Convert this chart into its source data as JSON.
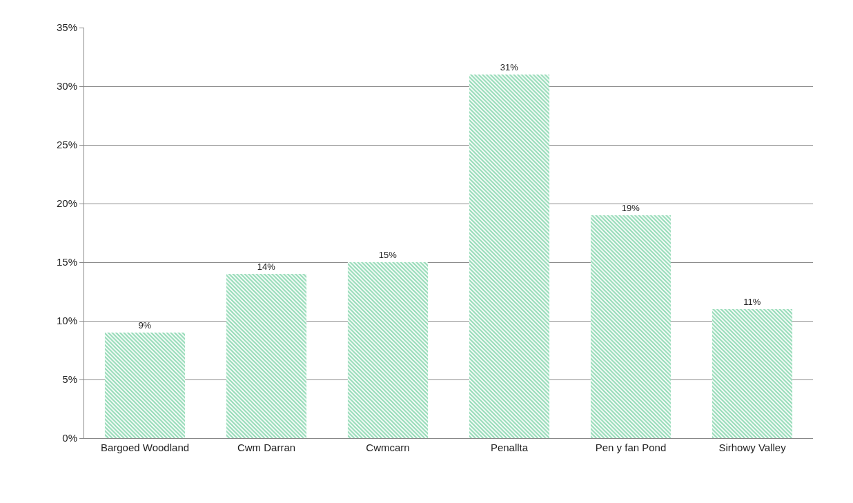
{
  "chart_data": {
    "type": "bar",
    "categories": [
      "Bargoed Woodland",
      "Cwm Darran",
      "Cwmcarn",
      "Penallta",
      "Pen y fan Pond",
      "Sirhowy Valley"
    ],
    "values": [
      9,
      14,
      15,
      31,
      19,
      11
    ],
    "value_labels": [
      "9%",
      "14%",
      "15%",
      "31%",
      "19%",
      "11%"
    ],
    "color": "#2eb872",
    "ylim": [
      0,
      35
    ],
    "yticks": [
      {
        "value": 0,
        "label": "0%"
      },
      {
        "value": 5,
        "label": "5%"
      },
      {
        "value": 10,
        "label": "10%"
      },
      {
        "value": 15,
        "label": "15%"
      },
      {
        "value": 20,
        "label": "20%"
      },
      {
        "value": 25,
        "label": "25%"
      },
      {
        "value": 30,
        "label": "30%"
      },
      {
        "value": 35,
        "label": "35%"
      }
    ],
    "grid": "y"
  }
}
